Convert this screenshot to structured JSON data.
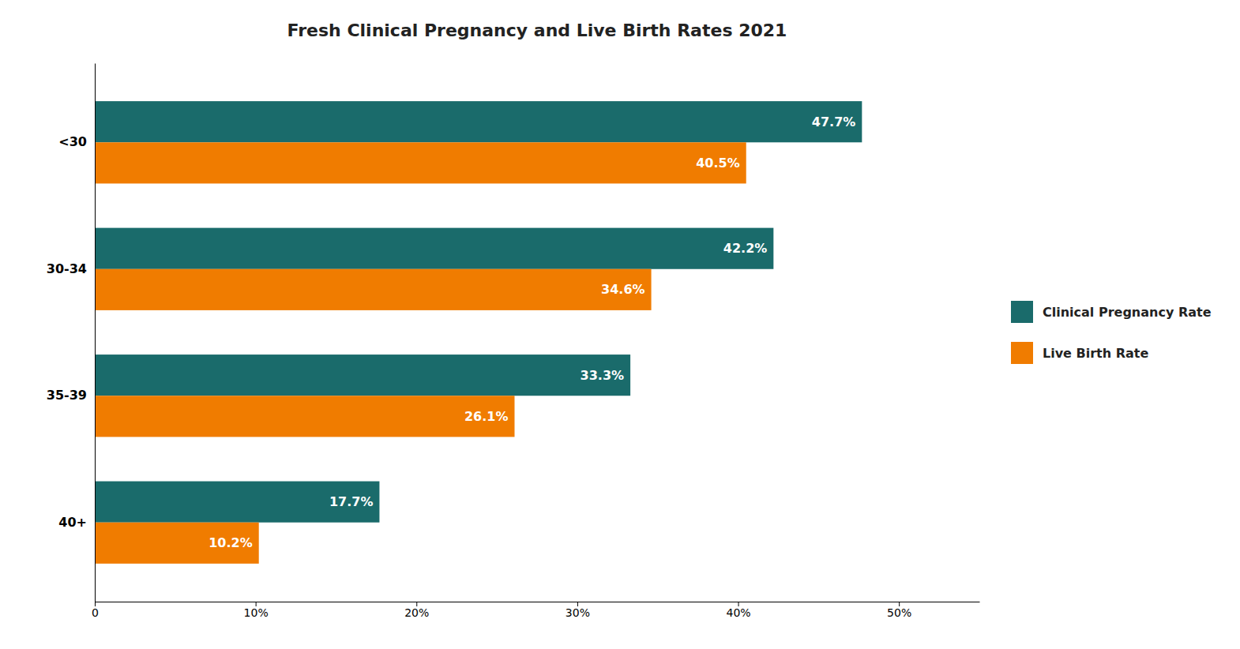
{
  "chart_data": {
    "type": "bar",
    "orientation": "horizontal",
    "title": "Fresh Clinical Pregnancy and Live Birth Rates 2021",
    "categories": [
      "<30",
      "30-34",
      "35-39",
      "40+"
    ],
    "series": [
      {
        "name": "Clinical Pregnancy Rate",
        "color": "#1a6b6b",
        "values": [
          47.7,
          42.2,
          33.3,
          17.7
        ],
        "value_labels": [
          "47.7%",
          "42.2%",
          "33.3%",
          "17.7%"
        ]
      },
      {
        "name": "Live Birth Rate",
        "color": "#f07c00",
        "values": [
          40.5,
          34.6,
          26.1,
          10.2
        ],
        "value_labels": [
          "40.5%",
          "34.6%",
          "26.1%",
          "10.2%"
        ]
      }
    ],
    "xlim": [
      0,
      55
    ],
    "xticks": [
      0,
      {
        "value": 10,
        "label": "10%"
      },
      {
        "value": 20,
        "label": "20%"
      },
      {
        "value": 30,
        "label": "30%"
      },
      {
        "value": 40,
        "label": "40%"
      },
      {
        "value": 50,
        "label": "50%"
      }
    ],
    "data_labels": true,
    "legend": "right",
    "grid": false
  }
}
